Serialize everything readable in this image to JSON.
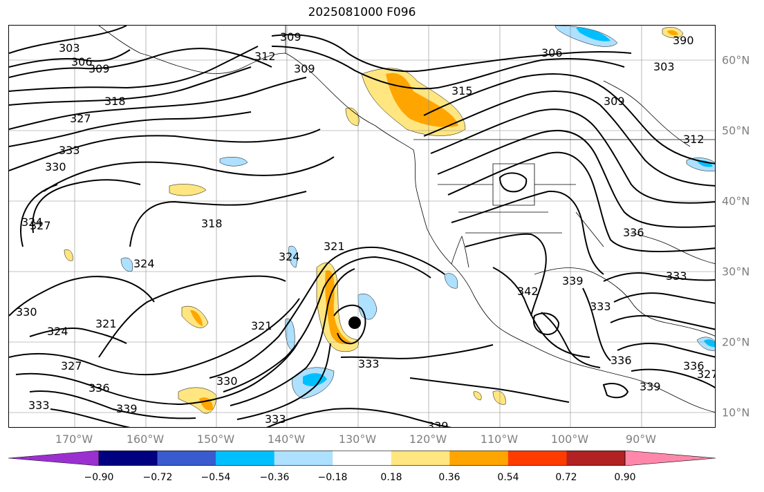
{
  "title": "2025081000 F096",
  "map": {
    "lon_ticks": [
      "170°W",
      "160°W",
      "150°W",
      "140°W",
      "130°W",
      "120°W",
      "110°W",
      "100°W",
      "90°W"
    ],
    "lat_ticks": [
      "60°N",
      "50°N",
      "40°N",
      "30°N",
      "20°N",
      "10°N"
    ],
    "contour_labels": [
      "309",
      "303",
      "306",
      "309",
      "312",
      "309",
      "306",
      "303",
      "390",
      "315",
      "318",
      "327",
      "309",
      "312",
      "333",
      "330",
      "324",
      "327",
      "318",
      "321",
      "324",
      "324",
      "336",
      "330",
      "324",
      "321",
      "321",
      "342",
      "339",
      "333",
      "333",
      "327",
      "336",
      "339",
      "330",
      "333",
      "336",
      "333",
      "339",
      "333",
      "339",
      "336",
      "327"
    ],
    "storm_marker": "tropical-cyclone-center"
  },
  "colorbar": {
    "colors": [
      "#9b30d0",
      "#000080",
      "#3a5bd0",
      "#00bfff",
      "#aee0ff",
      "#ffffff",
      "#ffe680",
      "#ffa500",
      "#ff3c00",
      "#b22222",
      "#ff88aa"
    ],
    "tick_labels": [
      "−0.90",
      "−0.72",
      "−0.54",
      "−0.36",
      "−0.18",
      "0.18",
      "0.36",
      "0.54",
      "0.72",
      "0.90"
    ]
  }
}
